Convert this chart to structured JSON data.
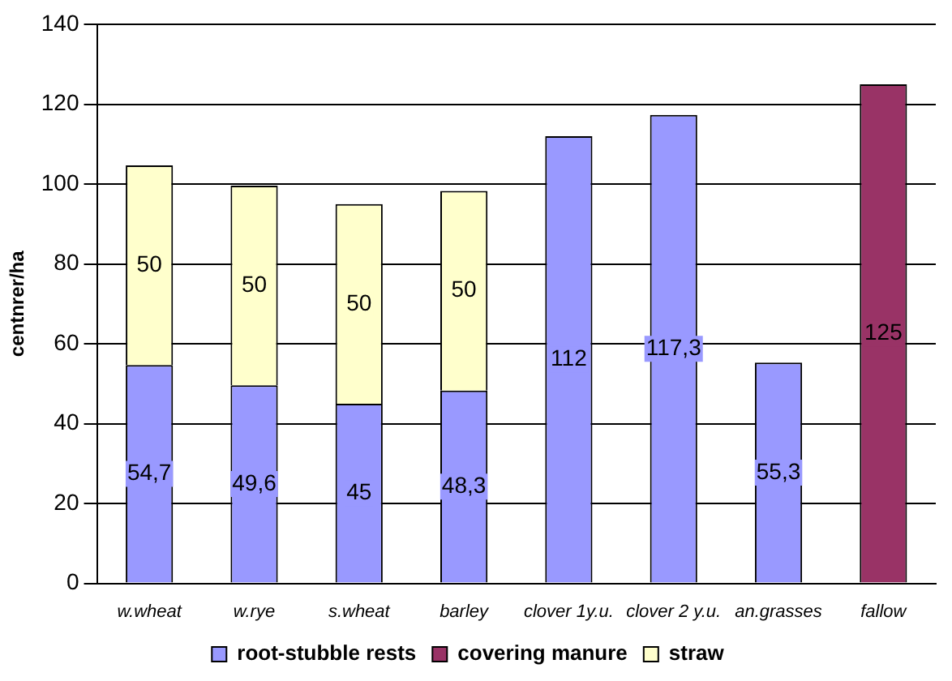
{
  "chart_data": {
    "type": "bar",
    "stacked": true,
    "ylabel": "centnrer/ha",
    "categories": [
      "w.wheat",
      "w.rye",
      "s.wheat",
      "barley",
      "clover 1y.u.",
      "clover 2 y.u.",
      "an.grasses",
      "fallow"
    ],
    "series": [
      {
        "name": "root-stubble rests",
        "color": "#9999ff",
        "values": [
          54.7,
          49.6,
          45,
          48.3,
          112,
          117.3,
          55.3,
          null
        ],
        "value_labels": [
          "54,7",
          "49,6",
          "45",
          "48,3",
          "112",
          "117,3",
          "55,3",
          null
        ]
      },
      {
        "name": "covering manure",
        "color": "#993366",
        "values": [
          null,
          null,
          null,
          null,
          null,
          null,
          null,
          125
        ],
        "value_labels": [
          null,
          null,
          null,
          null,
          null,
          null,
          null,
          "125"
        ]
      },
      {
        "name": "straw",
        "color": "#ffffcc",
        "values": [
          50,
          50,
          50,
          50,
          null,
          null,
          null,
          null
        ],
        "value_labels": [
          "50",
          "50",
          "50",
          "50",
          null,
          null,
          null,
          null
        ]
      }
    ],
    "ylim": [
      0,
      140
    ],
    "yticks": [
      0,
      20,
      40,
      60,
      80,
      100,
      120,
      140
    ],
    "grid": "y",
    "legend": "bottom"
  }
}
